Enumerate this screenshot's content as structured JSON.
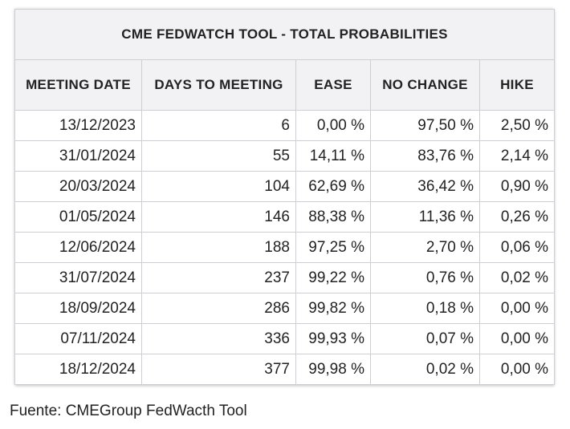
{
  "table": {
    "title": "CME FEDWATCH TOOL - TOTAL PROBABILITIES",
    "headers": [
      "MEETING DATE",
      "DAYS TO MEETING",
      "EASE",
      "NO CHANGE",
      "HIKE"
    ],
    "rows": [
      [
        "13/12/2023",
        "6",
        "0,00 %",
        "97,50 %",
        "2,50 %"
      ],
      [
        "31/01/2024",
        "55",
        "14,11 %",
        "83,76 %",
        "2,14 %"
      ],
      [
        "20/03/2024",
        "104",
        "62,69 %",
        "36,42 %",
        "0,90 %"
      ],
      [
        "01/05/2024",
        "146",
        "88,38 %",
        "11,36 %",
        "0,26 %"
      ],
      [
        "12/06/2024",
        "188",
        "97,25 %",
        "2,70 %",
        "0,06 %"
      ],
      [
        "31/07/2024",
        "237",
        "99,22 %",
        "0,76 %",
        "0,02 %"
      ],
      [
        "18/09/2024",
        "286",
        "99,82 %",
        "0,18 %",
        "0,00 %"
      ],
      [
        "07/11/2024",
        "336",
        "99,93 %",
        "0,07 %",
        "0,00 %"
      ],
      [
        "18/12/2024",
        "377",
        "99,98 %",
        "0,02 %",
        "0,00 %"
      ]
    ]
  },
  "source": "Fuente: CMEGroup FedWacth Tool",
  "colors": {
    "header_bg": "#f2f2f4",
    "border": "#cfcfd3",
    "text": "#222222"
  }
}
